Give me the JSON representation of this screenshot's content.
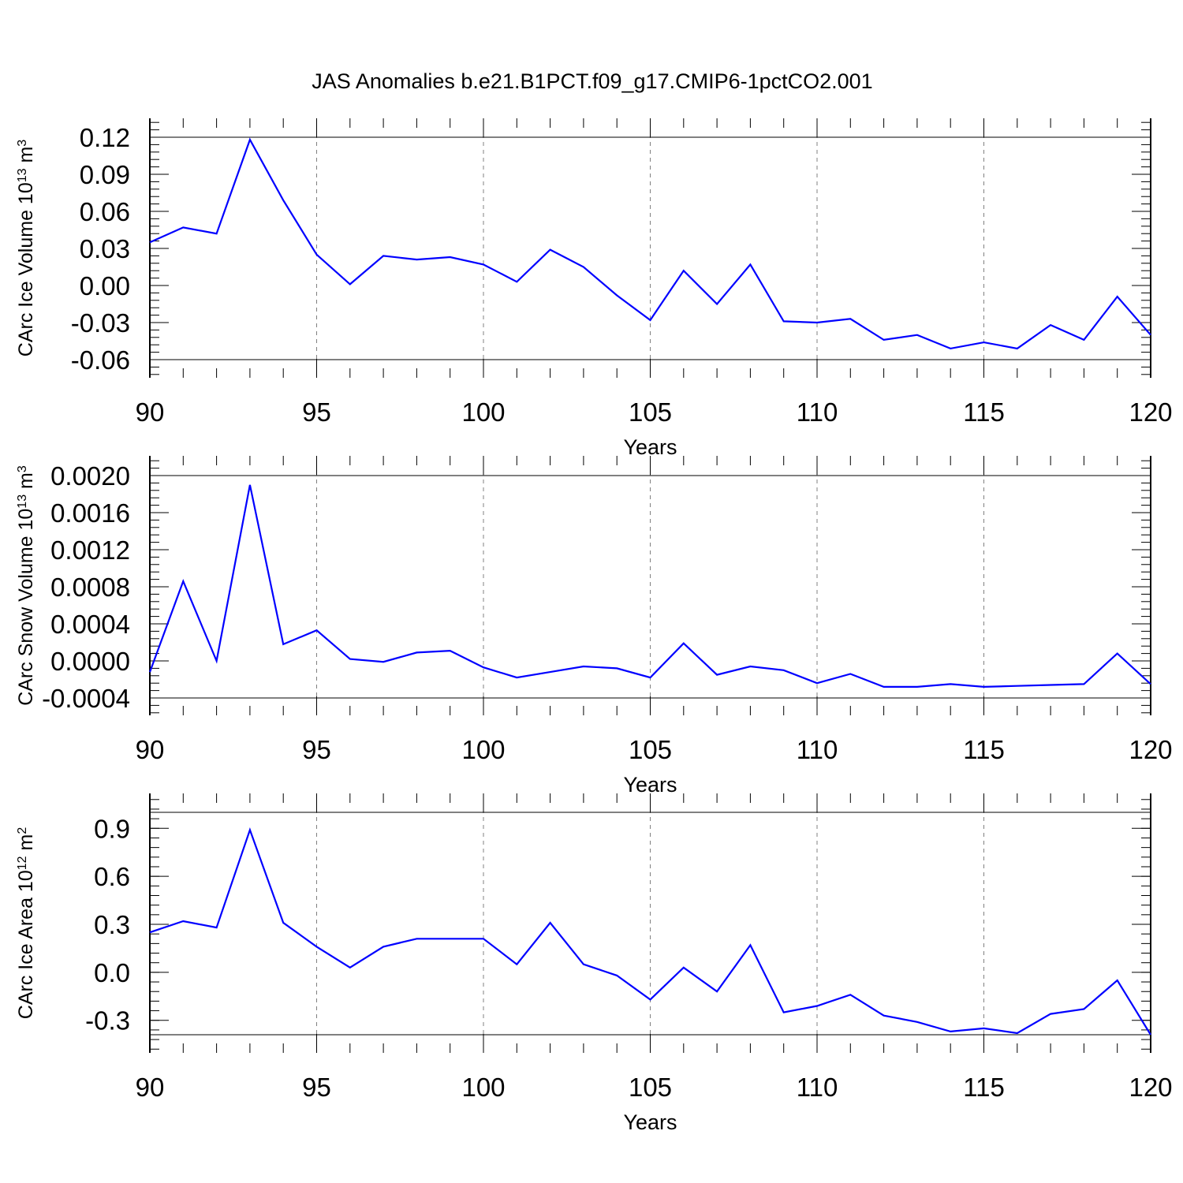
{
  "title": "JAS Anomalies b.e21.B1PCT.f09_g17.CMIP6-1pctCO2.001",
  "colors": {
    "line": "#0000ff",
    "axis": "#000000",
    "grid": "#808080"
  },
  "chart_data": [
    {
      "type": "line",
      "ylabel": {
        "prefix": "CArc Ice Volume 10",
        "exp": "13",
        "unit": " m",
        "unit_exp": "3"
      },
      "xlabel": "Years",
      "xlim": [
        90,
        120
      ],
      "ylim": [
        -0.06,
        0.12
      ],
      "xticks": [
        90,
        95,
        100,
        105,
        110,
        115,
        120
      ],
      "xtick_labels": [
        "90",
        "95",
        "100",
        "105",
        "110",
        "115",
        "120"
      ],
      "yticks": [
        0.12,
        0.09,
        0.06,
        0.03,
        0.0,
        -0.03,
        -0.06
      ],
      "ytick_labels": [
        "0.12",
        "0.09",
        "0.06",
        "0.03",
        "0.00",
        "-0.03",
        "-0.06"
      ],
      "x": [
        90,
        91,
        92,
        93,
        94,
        95,
        96,
        97,
        98,
        99,
        100,
        101,
        102,
        103,
        104,
        105,
        106,
        107,
        108,
        109,
        110,
        111,
        112,
        113,
        114,
        115,
        116,
        117,
        118,
        119,
        120
      ],
      "values": [
        0.035,
        0.047,
        0.042,
        0.118,
        0.069,
        0.025,
        0.001,
        0.024,
        0.021,
        0.023,
        0.017,
        0.003,
        0.029,
        0.015,
        -0.008,
        -0.028,
        0.012,
        -0.015,
        0.017,
        -0.029,
        -0.03,
        -0.027,
        -0.044,
        -0.04,
        -0.051,
        -0.046,
        -0.051,
        -0.032,
        -0.044,
        -0.009,
        -0.04
      ]
    },
    {
      "type": "line",
      "ylabel": {
        "prefix": "CArc Snow Volume 10",
        "exp": "13",
        "unit": " m",
        "unit_exp": "3"
      },
      "xlabel": "Years",
      "xlim": [
        90,
        120
      ],
      "ylim": [
        -0.0004,
        0.002
      ],
      "xticks": [
        90,
        95,
        100,
        105,
        110,
        115,
        120
      ],
      "xtick_labels": [
        "90",
        "95",
        "100",
        "105",
        "110",
        "115",
        "120"
      ],
      "yticks": [
        0.002,
        0.0016,
        0.0012,
        0.0008,
        0.0004,
        0.0,
        -0.0004
      ],
      "ytick_labels": [
        "0.0020",
        "0.0016",
        "0.0012",
        "0.0008",
        "0.0004",
        "0.0000",
        "-0.0004"
      ],
      "x": [
        90,
        91,
        92,
        93,
        94,
        95,
        96,
        97,
        98,
        99,
        100,
        101,
        102,
        103,
        104,
        105,
        106,
        107,
        108,
        109,
        110,
        111,
        112,
        113,
        114,
        115,
        116,
        117,
        118,
        119,
        120
      ],
      "values": [
        -0.00012,
        0.00086,
        0.0,
        0.0019,
        0.00018,
        0.00033,
        2e-05,
        -1e-05,
        9e-05,
        0.00011,
        -7e-05,
        -0.00018,
        -0.00012,
        -6e-05,
        -8e-05,
        -0.00018,
        0.00019,
        -0.00015,
        -6e-05,
        -0.0001,
        -0.00024,
        -0.00014,
        -0.00028,
        -0.00028,
        -0.00025,
        -0.00028,
        -0.00027,
        -0.00026,
        -0.00025,
        8e-05,
        -0.00025
      ]
    },
    {
      "type": "line",
      "ylabel": {
        "prefix": "CArc Ice Area 10",
        "exp": "12",
        "unit": " m",
        "unit_exp": "2"
      },
      "xlabel": "Years",
      "xlim": [
        90,
        120
      ],
      "ylim": [
        -0.39,
        1.0
      ],
      "xticks": [
        90,
        95,
        100,
        105,
        110,
        115,
        120
      ],
      "xtick_labels": [
        "90",
        "95",
        "100",
        "105",
        "110",
        "115",
        "120"
      ],
      "yticks": [
        0.9,
        0.6,
        0.3,
        0.0,
        -0.3
      ],
      "ytick_labels": [
        "0.9",
        "0.6",
        "0.3",
        "0.0",
        "-0.3"
      ],
      "x": [
        90,
        91,
        92,
        93,
        94,
        95,
        96,
        97,
        98,
        99,
        100,
        101,
        102,
        103,
        104,
        105,
        106,
        107,
        108,
        109,
        110,
        111,
        112,
        113,
        114,
        115,
        116,
        117,
        118,
        119,
        120
      ],
      "values": [
        0.25,
        0.32,
        0.28,
        0.89,
        0.31,
        0.16,
        0.03,
        0.16,
        0.21,
        0.21,
        0.21,
        0.05,
        0.31,
        0.05,
        -0.02,
        -0.17,
        0.03,
        -0.12,
        0.17,
        -0.25,
        -0.21,
        -0.14,
        -0.27,
        -0.31,
        -0.37,
        -0.35,
        -0.38,
        -0.26,
        -0.23,
        -0.05,
        -0.39
      ]
    }
  ]
}
